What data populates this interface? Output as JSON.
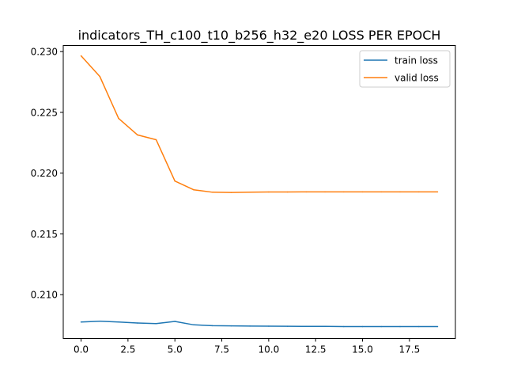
{
  "chart_data": {
    "type": "line",
    "title": "indicators_TH_c100_t10_b256_h32_e20 LOSS PER EPOCH",
    "xlabel": "",
    "ylabel": "",
    "x": [
      0,
      1,
      2,
      3,
      4,
      5,
      6,
      7,
      8,
      9,
      10,
      11,
      12,
      13,
      14,
      15,
      16,
      17,
      18,
      19
    ],
    "xlim": [
      -0.95,
      19.95
    ],
    "ylim": [
      0.2064,
      0.2305
    ],
    "xticks": [
      0.0,
      2.5,
      5.0,
      7.5,
      10.0,
      12.5,
      15.0,
      17.5
    ],
    "xtick_labels": [
      "0.0",
      "2.5",
      "5.0",
      "7.5",
      "10.0",
      "12.5",
      "15.0",
      "17.5"
    ],
    "yticks": [
      0.21,
      0.215,
      0.22,
      0.225,
      0.23
    ],
    "ytick_labels": [
      "0.210",
      "0.215",
      "0.220",
      "0.225",
      "0.230"
    ],
    "grid": false,
    "legend_position": "top-right",
    "series": [
      {
        "name": "train loss",
        "color": "#1f77b4",
        "values": [
          0.20775,
          0.20782,
          0.20775,
          0.20767,
          0.20762,
          0.2078,
          0.20752,
          0.20745,
          0.20743,
          0.20742,
          0.20741,
          0.2074,
          0.20739,
          0.20739,
          0.20738,
          0.20738,
          0.20738,
          0.20738,
          0.20738,
          0.20738
        ]
      },
      {
        "name": "valid loss",
        "color": "#ff7f0e",
        "values": [
          0.22965,
          0.22795,
          0.2245,
          0.22315,
          0.22275,
          0.21935,
          0.21863,
          0.21843,
          0.21841,
          0.21843,
          0.21845,
          0.21845,
          0.21846,
          0.21846,
          0.21846,
          0.21846,
          0.21846,
          0.21846,
          0.21846,
          0.21846
        ]
      }
    ]
  }
}
